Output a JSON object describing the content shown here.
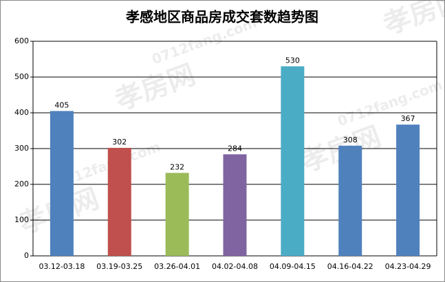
{
  "chart_data": {
    "type": "bar",
    "title": "孝感地区商品房成交套数趋势图",
    "categories": [
      "03.12-03.18",
      "03.19-03.25",
      "03.26-04.01",
      "04.02-04.08",
      "04.09-04.15",
      "04.16-04.22",
      "04.23-04.29"
    ],
    "values": [
      405,
      302,
      232,
      284,
      530,
      308,
      367
    ],
    "colors": [
      "#4f81bd",
      "#c0504d",
      "#9bbb59",
      "#8064a2",
      "#4bacc6",
      "#4f81bd",
      "#4f81bd"
    ],
    "ylim": [
      0,
      600
    ],
    "yticks": [
      0,
      100,
      200,
      300,
      400,
      500,
      600
    ],
    "grid": true,
    "watermark": {
      "logo": "孝房网",
      "site": "0712fang.com"
    }
  }
}
